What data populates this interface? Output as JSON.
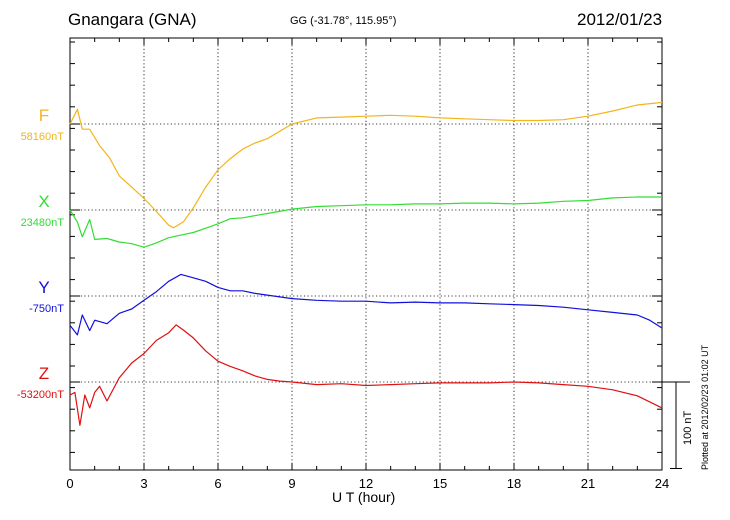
{
  "header": {
    "title": "Gnangara (GNA)",
    "coords": "GG (-31.78°, 115.95°)",
    "date": "2012/01/23"
  },
  "plotted": "Plotted at 2012/02/23 01:02 UT",
  "scale_label": "100 nT",
  "chart_data": {
    "type": "line",
    "title": "Gnangara (GNA)",
    "xlabel": "U T (hour)",
    "ylabel": "",
    "xlim": [
      0,
      24
    ],
    "xticks": [
      0,
      3,
      6,
      9,
      12,
      15,
      18,
      21,
      24
    ],
    "grid": true,
    "scale_bar_nT": 100,
    "series": [
      {
        "name": "F",
        "baseline_label": "58160nT",
        "baseline": 58160,
        "color": "#f2b51b",
        "x": [
          0,
          0.3,
          0.5,
          0.8,
          1.2,
          1.6,
          2,
          2.5,
          3,
          3.5,
          4,
          4.2,
          4.6,
          5,
          5.5,
          6,
          6.5,
          7,
          7.5,
          8,
          9,
          10,
          11,
          12,
          13,
          14,
          15,
          16,
          17,
          18,
          19,
          20,
          21,
          22,
          23,
          24
        ],
        "y": [
          58160,
          58177,
          58154,
          58154,
          58135,
          58121,
          58100,
          58087,
          58074,
          58059,
          58043,
          58040,
          58047,
          58063,
          58087,
          58107,
          58120,
          58131,
          58138,
          58143,
          58160,
          58167,
          58168,
          58169,
          58170,
          58169,
          58167,
          58166,
          58165,
          58164,
          58164,
          58165,
          58169,
          58175,
          58182,
          58185
        ]
      },
      {
        "name": "X",
        "baseline_label": "23480nT",
        "baseline": 23480,
        "color": "#33dd33",
        "x": [
          0,
          0.3,
          0.5,
          0.8,
          1,
          1.5,
          2,
          2.5,
          3,
          3.5,
          4,
          4.5,
          5,
          5.5,
          6,
          6.5,
          7,
          8,
          9,
          10,
          11,
          12,
          13,
          14,
          15,
          16,
          17,
          18,
          19,
          20,
          21,
          22,
          23,
          24
        ],
        "y": [
          23480,
          23466,
          23449,
          23469,
          23446,
          23447,
          23443,
          23441,
          23437,
          23442,
          23448,
          23451,
          23454,
          23459,
          23464,
          23470,
          23471,
          23476,
          23481,
          23484,
          23485,
          23486,
          23486,
          23487,
          23487,
          23488,
          23488,
          23487,
          23488,
          23490,
          23491,
          23494,
          23495,
          23495
        ]
      },
      {
        "name": "Y",
        "baseline_label": "-750nT",
        "baseline": -750,
        "color": "#1010dd",
        "x": [
          0,
          0.3,
          0.5,
          0.8,
          1,
          1.5,
          2,
          2.5,
          3,
          3.5,
          4,
          4.5,
          5,
          5.5,
          6,
          6.5,
          7,
          7.5,
          8,
          9,
          10,
          11,
          12,
          13,
          14,
          15,
          16,
          17,
          18,
          19,
          20,
          21,
          22,
          23,
          23.5,
          24
        ],
        "y": [
          -784,
          -795,
          -772,
          -790,
          -778,
          -782,
          -770,
          -765,
          -755,
          -745,
          -733,
          -725,
          -729,
          -733,
          -740,
          -744,
          -744,
          -747,
          -749,
          -753,
          -755,
          -756,
          -756,
          -758,
          -757,
          -758,
          -758,
          -759,
          -760,
          -761,
          -763,
          -766,
          -769,
          -772,
          -778,
          -787
        ]
      },
      {
        "name": "Z",
        "baseline_label": "-53200nT",
        "baseline": -53200,
        "color": "#e01010",
        "x": [
          0,
          0.2,
          0.4,
          0.6,
          0.8,
          1,
          1.2,
          1.5,
          2,
          2.5,
          3,
          3.5,
          4,
          4.3,
          4.6,
          5,
          5.5,
          6,
          6.5,
          7,
          7.5,
          8,
          8.5,
          9,
          10,
          11,
          12,
          13,
          14,
          15,
          16,
          17,
          18,
          19,
          20,
          21,
          22,
          23,
          24
        ],
        "y": [
          -53215,
          -53212,
          -53250,
          -53215,
          -53230,
          -53212,
          -53205,
          -53222,
          -53195,
          -53178,
          -53167,
          -53152,
          -53143,
          -53134,
          -53140,
          -53149,
          -53164,
          -53176,
          -53182,
          -53187,
          -53193,
          -53197,
          -53199,
          -53200,
          -53203,
          -53202,
          -53204,
          -53203,
          -53202,
          -53201,
          -53201,
          -53201,
          -53200,
          -53201,
          -53203,
          -53205,
          -53209,
          -53216,
          -53230
        ]
      }
    ]
  }
}
